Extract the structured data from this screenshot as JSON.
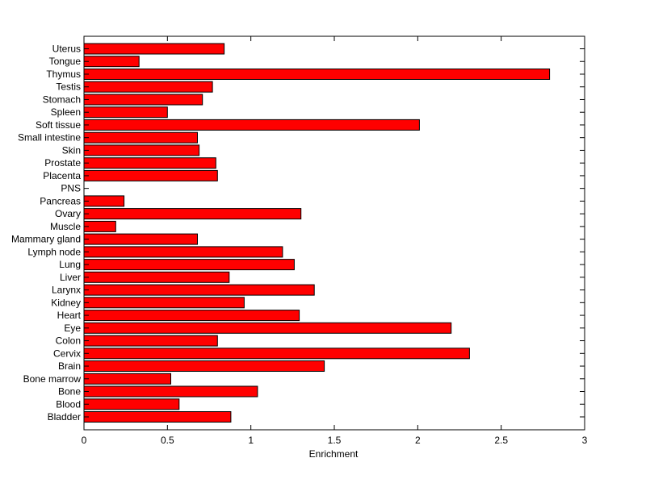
{
  "chart_data": {
    "type": "bar",
    "orientation": "horizontal",
    "categories": [
      "Bladder",
      "Blood",
      "Bone",
      "Bone marrow",
      "Brain",
      "Cervix",
      "Colon",
      "Eye",
      "Heart",
      "Kidney",
      "Larynx",
      "Liver",
      "Lung",
      "Lymph node",
      "Mammary gland",
      "Muscle",
      "Ovary",
      "Pancreas",
      "PNS",
      "Placenta",
      "Prostate",
      "Skin",
      "Small intestine",
      "Soft tissue",
      "Spleen",
      "Stomach",
      "Testis",
      "Thymus",
      "Tongue",
      "Uterus"
    ],
    "values": [
      0.88,
      0.57,
      1.04,
      0.52,
      1.44,
      2.31,
      0.8,
      2.2,
      1.29,
      0.96,
      1.38,
      0.87,
      1.26,
      1.19,
      0.68,
      0.19,
      1.3,
      0.24,
      0.0,
      0.8,
      0.79,
      0.69,
      0.68,
      2.01,
      0.5,
      0.71,
      0.77,
      2.79,
      0.33,
      0.84
    ],
    "xlabel": "Enrichment",
    "ylabel": "",
    "title": "",
    "xlim": [
      0,
      3
    ],
    "xticks": [
      "0",
      "0.5",
      "1",
      "1.5",
      "2",
      "2.5",
      "3"
    ],
    "xtick_values": [
      0,
      0.5,
      1,
      1.5,
      2,
      2.5,
      3
    ],
    "grid": false,
    "bar_color": "#ff0000",
    "bar_edge_color": "#000000"
  }
}
